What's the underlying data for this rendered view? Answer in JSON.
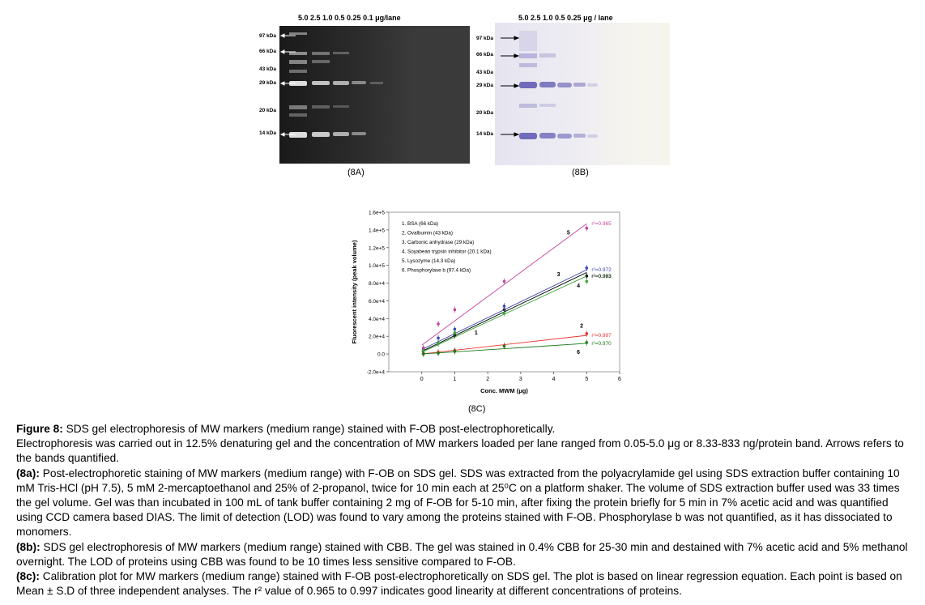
{
  "gel_a": {
    "lane_header": "5.0   2.5   1.0   0.5   0.25   0.1 μg/lane",
    "mw_labels": [
      "97 kDa",
      "66 kDa",
      "43 kDa",
      "29 kDa",
      "20 kDa",
      "14 kDa"
    ],
    "panel_label": "(8A)"
  },
  "gel_b": {
    "lane_header": "5.0   2.5   1.0   0.5   0.25 μg / lane",
    "mw_labels": [
      "97 kDa",
      "66 kDa",
      "43 kDa",
      "29 kDa",
      "20 kDa",
      "14 kDa"
    ],
    "panel_label": "(8B)"
  },
  "chart_panel_label": "(8C)",
  "chart_data": {
    "type": "scatter",
    "xlabel": "Conc. MWM (μg)",
    "ylabel": "Fluorescent intensity (peak volume)",
    "xlim": [
      -1,
      6
    ],
    "ylim": [
      -20000,
      160000
    ],
    "x_ticks": [
      "0",
      "1",
      "2",
      "3",
      "4",
      "5",
      "6"
    ],
    "y_ticks": [
      "-2.0e+4",
      "0.0",
      "2.0e+4",
      "4.0e+4",
      "6.0e+4",
      "8.0e+4",
      "1.0e+5",
      "1.2e+5",
      "1.4e+5",
      "1.6e+5"
    ],
    "legend_placement": "top-left",
    "legend": [
      "1.   BSA (66 kDa)",
      "2.   Ovalbumin (43 kDa)",
      "3.   Carbonic anhydrase (29 kDa)",
      "4.   Soyabean trypsin inhibitor (20.1 kDa)",
      "5.   Lysozyme (14.3 kDa)",
      "6.   Phosphorylase b (97.4 kDa)"
    ],
    "series": [
      {
        "name": "1",
        "color": "#000000",
        "x": [
          0.05,
          0.5,
          1.0,
          2.5,
          5.0
        ],
        "y": [
          5000,
          12000,
          21000,
          50000,
          88000
        ],
        "fit": [
          [
            0,
            3000
          ],
          [
            5,
            92000
          ]
        ],
        "r2": "",
        "label_pos": [
          1.6,
          22000
        ]
      },
      {
        "name": "2",
        "color": "#e8322d",
        "x": [
          0.05,
          0.5,
          1.0,
          2.5,
          5.0
        ],
        "y": [
          1000,
          2000,
          4000,
          9000,
          23000
        ],
        "fit": [
          [
            0,
            0
          ],
          [
            5,
            21000
          ]
        ],
        "r2": "r²=0.997",
        "label_pos": [
          4.8,
          30000
        ]
      },
      {
        "name": "3",
        "color": "#3b45a8",
        "x": [
          0.05,
          0.5,
          1.0,
          2.5,
          5.0
        ],
        "y": [
          6000,
          18000,
          28000,
          54000,
          97000
        ],
        "fit": [
          [
            0,
            5000
          ],
          [
            5,
            95000
          ]
        ],
        "r2": "r²=0.972",
        "label_pos": [
          4.1,
          88000
        ]
      },
      {
        "name": "4",
        "color": "#3aa63a",
        "x": [
          0.05,
          0.5,
          1.0,
          2.5,
          5.0
        ],
        "y": [
          4000,
          12000,
          24000,
          46000,
          82000
        ],
        "fit": [
          [
            0,
            2000
          ],
          [
            5,
            88000
          ]
        ],
        "r2": "r²=0.991",
        "label_pos": [
          4.7,
          75000
        ]
      },
      {
        "name": "5",
        "color": "#c0449e",
        "x": [
          0.05,
          0.5,
          1.0,
          2.5,
          5.0
        ],
        "y": [
          7000,
          34000,
          50000,
          82000,
          142000
        ],
        "fit": [
          [
            0,
            10000
          ],
          [
            5,
            147000
          ]
        ],
        "r2": "r²=0.965",
        "label_pos": [
          4.4,
          135000
        ]
      },
      {
        "name": "6",
        "color": "#1a7a1a",
        "x": [
          0.05,
          0.5,
          1.0,
          2.5,
          5.0
        ],
        "y": [
          0,
          1000,
          3000,
          9000,
          13000
        ],
        "fit": [
          [
            0,
            0
          ],
          [
            5,
            12000
          ]
        ],
        "r2": "r²=0.970",
        "label_pos": [
          4.7,
          0
        ]
      }
    ],
    "r2_extra": [
      {
        "text": "r²=0.983",
        "color": "#000000",
        "x": 5.15,
        "y": 86000
      }
    ]
  },
  "caption": {
    "title_bold": "Figure 8:",
    "title_rest": " SDS gel electrophoresis of MW markers (medium range) stained with F-OB post-electrophoretically.",
    "p1": "Electrophoresis was carried out in 12.5% denaturing gel and the concentration of MW markers loaded per lane ranged from 0.05-5.0 μg or 8.33-833 ng/protein band. Arrows refers to the bands quantified.",
    "p2_bold": "(8a):",
    "p2": " Post-electrophoretic staining of MW markers (medium range) with F-OB on SDS gel. SDS was extracted from the polyacrylamide gel using SDS extraction buffer containing 10 mM Tris-HCl (pH 7.5), 5 mM  2-mercaptoethanol and 25% of 2-propanol, twice for 10 min each at 25⁰C on a platform shaker. The volume of SDS extraction buffer used was 33 times the gel volume. Gel was than incubated in 100 mL of tank buffer containing 2 mg of F-OB for 5-10 min, after fixing the protein briefly for 5 min in 7% acetic acid and was quantified using CCD camera based DIAS. The limit of detection (LOD) was found to vary among the proteins stained with F-OB.  Phosphorylase b was not quantified, as it has dissociated to monomers.",
    "p3_bold": "(8b):",
    "p3": " SDS gel electrophoresis of MW markers (medium range) stained with CBB. The gel was stained in 0.4% CBB for 25-30 min and destained with 7% acetic acid and 5% methanol overnight. The LOD of proteins using CBB was found to be 10 times less sensitive compared to F-OB.",
    "p4_bold": "(8c):",
    "p4": " Calibration plot for MW markers (medium range) stained with F-OB post-electrophoretically on SDS gel. The plot is based on linear regression equation. Each point is based on Mean ± S.D of three independent analyses. The r² value of 0.965 to 0.997 indicates good linearity at different concentrations of proteins."
  }
}
